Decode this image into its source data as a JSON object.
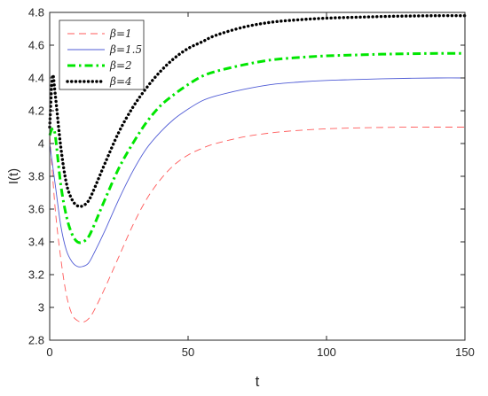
{
  "chart_data": {
    "type": "line",
    "xlabel": "t",
    "ylabel": "I(t)",
    "xlim": [
      0,
      150
    ],
    "ylim": [
      2.8,
      4.8
    ],
    "xticks": [
      "0",
      "50",
      "100",
      "150"
    ],
    "yticks": [
      "2.8",
      "3",
      "3.2",
      "3.4",
      "3.6",
      "3.8",
      "4",
      "4.2",
      "4.4",
      "4.6",
      "4.8"
    ],
    "grid": false,
    "legend_position": "top-left",
    "series": [
      {
        "name": "β=1",
        "color": "#ff5a5a",
        "style": "dashed",
        "x": [
          0,
          2,
          4,
          6,
          8,
          10,
          12,
          14,
          16,
          20,
          25,
          30,
          35,
          40,
          45,
          50,
          55,
          60,
          70,
          80,
          90,
          100,
          110,
          120,
          130,
          140,
          150
        ],
        "y": [
          4.05,
          3.6,
          3.3,
          3.08,
          2.96,
          2.92,
          2.91,
          2.93,
          2.98,
          3.12,
          3.31,
          3.5,
          3.66,
          3.78,
          3.87,
          3.93,
          3.97,
          4.0,
          4.04,
          4.065,
          4.08,
          4.09,
          4.095,
          4.098,
          4.1,
          4.1,
          4.1
        ]
      },
      {
        "name": "β=1.5",
        "color": "#4f5bd5",
        "style": "solid",
        "x": [
          0,
          2,
          4,
          6,
          8,
          10,
          12,
          14,
          16,
          20,
          25,
          30,
          35,
          40,
          45,
          50,
          55,
          60,
          70,
          80,
          90,
          100,
          110,
          120,
          130,
          140,
          150
        ],
        "y": [
          4.0,
          3.75,
          3.5,
          3.35,
          3.28,
          3.25,
          3.25,
          3.27,
          3.33,
          3.47,
          3.66,
          3.83,
          3.97,
          4.07,
          4.15,
          4.21,
          4.26,
          4.29,
          4.33,
          4.36,
          4.375,
          4.385,
          4.39,
          4.395,
          4.398,
          4.4,
          4.4
        ]
      },
      {
        "name": "β=2",
        "color": "#00e600",
        "style": "dashdot",
        "x": [
          0,
          1,
          2,
          4,
          6,
          8,
          10,
          12,
          14,
          16,
          20,
          25,
          30,
          35,
          40,
          45,
          50,
          55,
          60,
          70,
          80,
          90,
          100,
          110,
          120,
          130,
          140,
          150
        ],
        "y": [
          4.05,
          4.09,
          4.05,
          3.75,
          3.56,
          3.45,
          3.4,
          3.4,
          3.43,
          3.5,
          3.66,
          3.85,
          4.0,
          4.13,
          4.23,
          4.3,
          4.36,
          4.41,
          4.44,
          4.48,
          4.51,
          4.525,
          4.535,
          4.54,
          4.545,
          4.548,
          4.55,
          4.55
        ]
      },
      {
        "name": "β=4",
        "color": "#000000",
        "style": "dotted",
        "x": [
          0,
          1,
          2,
          4,
          6,
          8,
          10,
          12,
          14,
          16,
          20,
          25,
          30,
          35,
          40,
          45,
          50,
          55,
          60,
          70,
          80,
          90,
          100,
          110,
          120,
          130,
          140,
          150
        ],
        "y": [
          4.1,
          4.41,
          4.3,
          3.98,
          3.76,
          3.66,
          3.62,
          3.62,
          3.65,
          3.72,
          3.88,
          4.07,
          4.22,
          4.34,
          4.44,
          4.52,
          4.58,
          4.62,
          4.66,
          4.71,
          4.74,
          4.755,
          4.765,
          4.77,
          4.775,
          4.778,
          4.78,
          4.78
        ]
      }
    ]
  }
}
